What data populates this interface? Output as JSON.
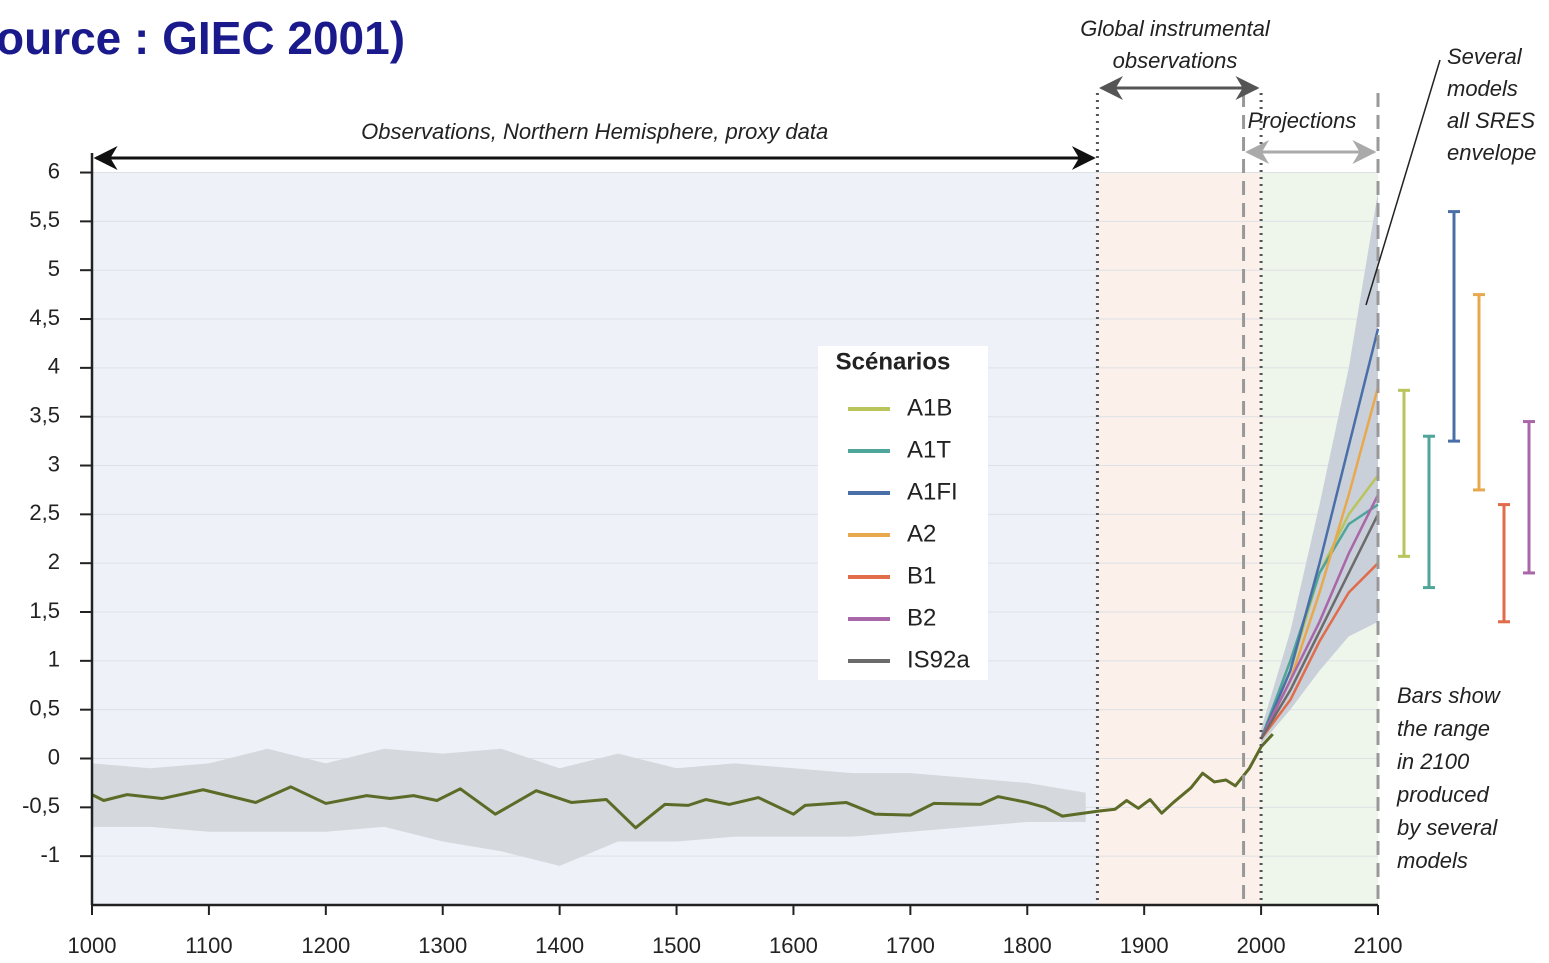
{
  "chart_data": {
    "type": "line",
    "title": "ource : GIEC 2001)",
    "xlim": [
      1000,
      2100
    ],
    "xticks": [
      1000,
      1100,
      1200,
      1300,
      1400,
      1500,
      1600,
      1700,
      1800,
      1900,
      2000,
      2100
    ],
    "ylim": [
      -1.5,
      6.2
    ],
    "yticks": [
      6,
      {
        "value": 5.5,
        "label": "5,5"
      },
      5,
      {
        "value": 4.5,
        "label": "4,5"
      },
      4,
      {
        "value": 3.5,
        "label": "3,5"
      },
      3,
      {
        "value": 2.5,
        "label": "2,5"
      },
      2,
      {
        "value": 1.5,
        "label": "1,5"
      },
      1,
      {
        "value": 0.5,
        "label": "0,5"
      },
      0,
      {
        "value": -0.5,
        "label": "-0,5"
      },
      -1
    ],
    "grid": true,
    "observed": {
      "color": "#5c6b27",
      "x": [
        1000,
        1010,
        1030,
        1060,
        1095,
        1140,
        1170,
        1200,
        1235,
        1255,
        1275,
        1295,
        1315,
        1345,
        1380,
        1410,
        1440,
        1465,
        1490,
        1510,
        1525,
        1545,
        1570,
        1600,
        1610,
        1645,
        1670,
        1700,
        1720,
        1760,
        1775,
        1800,
        1815,
        1830,
        1860,
        1875,
        1885,
        1895,
        1905,
        1915,
        1925,
        1940,
        1950,
        1960,
        1970,
        1978,
        1990,
        2000,
        2010
      ],
      "values": [
        -0.37,
        -0.43,
        -0.37,
        -0.41,
        -0.32,
        -0.45,
        -0.29,
        -0.46,
        -0.38,
        -0.41,
        -0.38,
        -0.43,
        -0.31,
        -0.57,
        -0.33,
        -0.45,
        -0.42,
        -0.71,
        -0.47,
        -0.48,
        -0.42,
        -0.47,
        -0.4,
        -0.57,
        -0.48,
        -0.45,
        -0.57,
        -0.58,
        -0.46,
        -0.47,
        -0.39,
        -0.45,
        -0.5,
        -0.59,
        -0.54,
        -0.52,
        -0.43,
        -0.51,
        -0.42,
        -0.56,
        -0.45,
        -0.3,
        -0.15,
        -0.24,
        -0.22,
        -0.28,
        -0.1,
        0.12,
        0.25
      ]
    },
    "proxy_band": {
      "color": "#d5d8dc",
      "x": [
        1000,
        1050,
        1100,
        1150,
        1200,
        1250,
        1300,
        1350,
        1400,
        1450,
        1500,
        1550,
        1600,
        1650,
        1700,
        1750,
        1800,
        1850
      ],
      "upper": [
        -0.05,
        -0.1,
        -0.05,
        0.1,
        -0.05,
        0.1,
        0.05,
        0.1,
        -0.1,
        0.05,
        -0.1,
        -0.05,
        -0.1,
        -0.15,
        -0.15,
        -0.2,
        -0.25,
        -0.35
      ],
      "lower": [
        -0.7,
        -0.7,
        -0.75,
        -0.75,
        -0.75,
        -0.7,
        -0.85,
        -0.95,
        -1.1,
        -0.85,
        -0.85,
        -0.8,
        -0.8,
        -0.8,
        -0.75,
        -0.7,
        -0.65,
        -0.65
      ]
    },
    "envelope": {
      "color": "#c9d0da",
      "x": [
        2000,
        2025,
        2050,
        2075,
        2100
      ],
      "upper": [
        0.3,
        1.3,
        2.6,
        4.0,
        5.8
      ],
      "lower": [
        0.15,
        0.5,
        0.9,
        1.25,
        1.4
      ]
    },
    "legend_title": "Scénarios",
    "projection_x": [
      2000,
      2025,
      2050,
      2075,
      2100
    ],
    "series": [
      {
        "name": "A1B",
        "color": "#b9c45a",
        "values": [
          0.2,
          0.9,
          1.9,
          2.5,
          2.9
        ]
      },
      {
        "name": "A1T",
        "color": "#4fa59a",
        "values": [
          0.2,
          1.0,
          1.9,
          2.4,
          2.6
        ]
      },
      {
        "name": "A1FI",
        "color": "#4a6fa8",
        "values": [
          0.2,
          0.9,
          2.0,
          3.2,
          4.4
        ]
      },
      {
        "name": "A2",
        "color": "#e8a84e",
        "values": [
          0.2,
          0.8,
          1.7,
          2.7,
          3.8
        ]
      },
      {
        "name": "B1",
        "color": "#e06c4a",
        "values": [
          0.2,
          0.6,
          1.2,
          1.7,
          2.0
        ]
      },
      {
        "name": "B2",
        "color": "#a966a8",
        "values": [
          0.2,
          0.8,
          1.4,
          2.1,
          2.7
        ]
      },
      {
        "name": "IS92a",
        "color": "#6b6b6b",
        "values": [
          0.2,
          0.7,
          1.3,
          1.9,
          2.5
        ]
      }
    ],
    "range_bars": {
      "low": [
        2.07,
        1.75,
        3.25,
        2.75,
        1.4,
        1.9
      ],
      "high": [
        3.77,
        3.3,
        5.6,
        4.75,
        2.6,
        3.45
      ]
    },
    "annotations": [
      {
        "text": [
          "Observations, Northern Hemisphere, proxy data"
        ],
        "x": [
          1000,
          1860
        ]
      },
      {
        "text": [
          "Global instrumental",
          "observations"
        ],
        "x": [
          1860,
          2000
        ]
      },
      {
        "text": [
          "Projections"
        ],
        "x": [
          1985,
          2100
        ]
      },
      {
        "text": [
          "Several",
          "models",
          "all SRES",
          "envelope"
        ]
      },
      {
        "text": [
          "Bars show",
          "the range",
          "in 2100",
          "produced",
          "by several",
          "models"
        ]
      }
    ]
  }
}
